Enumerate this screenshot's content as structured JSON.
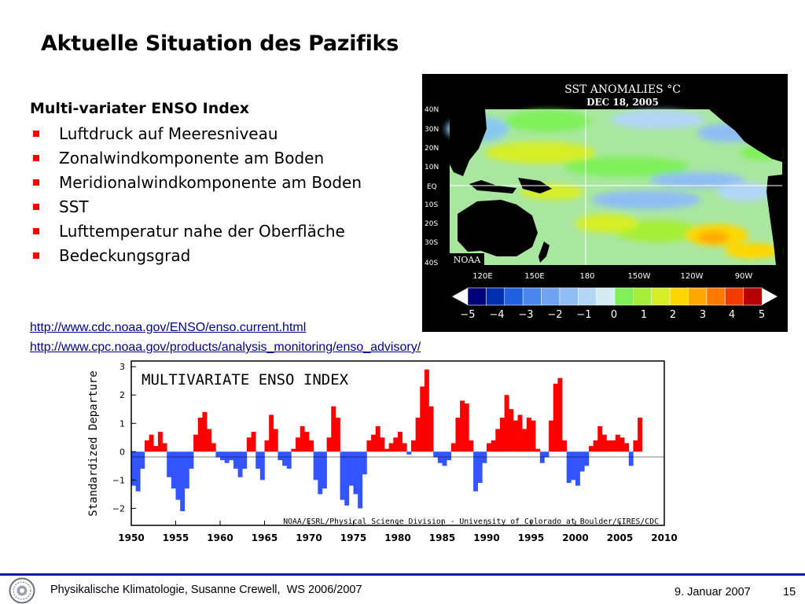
{
  "slide": {
    "title": "Aktuelle Situation des Pazifiks",
    "section_heading": "Multi-variater ENSO Index",
    "bullets": [
      "Luftdruck auf Meeresniveau",
      "Zonalwindkomponente am Boden",
      "Meridionalwindkomponente am Boden",
      "SST",
      "Lufttemperatur nahe der Oberfläche",
      "Bedeckungsgrad"
    ],
    "links": [
      "http://www.cdc.noaa.gov/ENSO/enso.current.html",
      "http://www.cpc.noaa.gov/products/analysis_monitoring/enso_advisory/"
    ],
    "colors": {
      "bullet": "#ff0000",
      "link": "#000099",
      "footer_rule": "#0b1f9e"
    }
  },
  "sst_map": {
    "title": "SST ANOMALIES °C",
    "date": "DEC 18, 2005",
    "credit": "NOAA",
    "lat_labels": [
      "40N",
      "30N",
      "20N",
      "10N",
      "EQ",
      "10S",
      "20S",
      "30S",
      "40S"
    ],
    "lon_labels": [
      "120E",
      "150E",
      "180",
      "150W",
      "120W",
      "90W"
    ],
    "colorbar_ticks": [
      "−5",
      "−4",
      "−3",
      "−2",
      "−1",
      "0",
      "1",
      "2",
      "3",
      "4",
      "5"
    ],
    "colorbar_colors": [
      "#00007a",
      "#0030b0",
      "#2060e0",
      "#4a86ee",
      "#6fa4f2",
      "#90bdf4",
      "#b3d5f6",
      "#d4ecf4",
      "#7ff05a",
      "#a6ee38",
      "#d6ee28",
      "#ffd700",
      "#ffa800",
      "#ff7a00",
      "#f03c00",
      "#b40000"
    ],
    "map_colors": {
      "background": "#000000",
      "ocean_base": "#a9e7a0",
      "land": "#000000",
      "labels": "#ffffff"
    }
  },
  "chart_data": {
    "type": "area",
    "title": "MULTIVARIATE ENSO INDEX",
    "ylabel": "Standardized Departure",
    "xlabel": "",
    "credit": "NOAA/ESRL/Physical Science Division - University of Colorado at Boulder/CIRES/CDC",
    "xlim": [
      1950,
      2010
    ],
    "ylim": [
      -2.6,
      3.2
    ],
    "x_ticks": [
      1950,
      1955,
      1960,
      1965,
      1970,
      1975,
      1980,
      1985,
      1990,
      1995,
      2000,
      2005,
      2010
    ],
    "y_ticks": [
      -2,
      -1,
      0,
      1,
      2,
      3
    ],
    "y_tick_labels": [
      "−2",
      "−1",
      "0",
      "1",
      "2",
      "3"
    ],
    "colors": {
      "positive": "#ff0000",
      "negative": "#3355ff"
    },
    "x": [
      1950.0,
      1950.5,
      1951.0,
      1951.5,
      1952.0,
      1952.5,
      1953.0,
      1953.5,
      1954.0,
      1954.5,
      1955.0,
      1955.5,
      1956.0,
      1956.5,
      1957.0,
      1957.5,
      1958.0,
      1958.5,
      1959.0,
      1959.5,
      1960.0,
      1960.5,
      1961.0,
      1961.5,
      1962.0,
      1962.5,
      1963.0,
      1963.5,
      1964.0,
      1964.5,
      1965.0,
      1965.5,
      1966.0,
      1966.5,
      1967.0,
      1967.5,
      1968.0,
      1968.5,
      1969.0,
      1969.5,
      1970.0,
      1970.5,
      1971.0,
      1971.5,
      1972.0,
      1972.5,
      1973.0,
      1973.5,
      1974.0,
      1974.5,
      1975.0,
      1975.5,
      1976.0,
      1976.5,
      1977.0,
      1977.5,
      1978.0,
      1978.5,
      1979.0,
      1979.5,
      1980.0,
      1980.5,
      1981.0,
      1981.5,
      1982.0,
      1982.5,
      1983.0,
      1983.5,
      1984.0,
      1984.5,
      1985.0,
      1985.5,
      1986.0,
      1986.5,
      1987.0,
      1987.5,
      1988.0,
      1988.5,
      1989.0,
      1989.5,
      1990.0,
      1990.5,
      1991.0,
      1991.5,
      1992.0,
      1992.5,
      1993.0,
      1993.5,
      1994.0,
      1994.5,
      1995.0,
      1995.5,
      1996.0,
      1996.5,
      1997.0,
      1997.5,
      1998.0,
      1998.5,
      1999.0,
      1999.5,
      2000.0,
      2000.5,
      2001.0,
      2001.5,
      2002.0,
      2002.5,
      2003.0,
      2003.5,
      2004.0,
      2004.5,
      2005.0,
      2005.5,
      2006.0,
      2006.5,
      2007.0
    ],
    "values": [
      -1.2,
      -1.4,
      -0.6,
      0.4,
      0.6,
      0.2,
      0.7,
      0.3,
      -0.9,
      -1.3,
      -1.7,
      -2.1,
      -1.3,
      -0.6,
      0.6,
      1.2,
      1.4,
      0.8,
      0.3,
      -0.2,
      -0.3,
      -0.4,
      -0.3,
      -0.6,
      -0.9,
      -0.6,
      0.5,
      0.7,
      -0.6,
      -1.0,
      0.4,
      1.3,
      0.8,
      -0.3,
      -0.5,
      -0.6,
      0.1,
      0.5,
      0.9,
      0.7,
      0.4,
      -1.0,
      -1.5,
      -1.3,
      0.5,
      1.6,
      1.2,
      -1.7,
      -1.9,
      -1.2,
      -1.5,
      -2.0,
      -0.8,
      0.4,
      0.6,
      0.9,
      0.5,
      0.1,
      0.3,
      0.5,
      0.7,
      0.3,
      -0.1,
      0.4,
      1.2,
      2.3,
      2.9,
      1.6,
      -0.2,
      -0.4,
      -0.5,
      -0.3,
      0.3,
      1.2,
      1.8,
      1.7,
      0.4,
      -1.4,
      -1.1,
      -0.4,
      0.3,
      0.4,
      0.8,
      1.2,
      2.0,
      1.5,
      1.1,
      1.3,
      0.8,
      1.2,
      1.1,
      0.1,
      -0.4,
      -0.2,
      1.1,
      2.4,
      2.6,
      0.4,
      -1.1,
      -1.0,
      -1.2,
      -0.7,
      -0.5,
      0.2,
      0.4,
      0.9,
      0.6,
      0.4,
      0.4,
      0.6,
      0.5,
      0.3,
      -0.5,
      0.4,
      1.2
    ]
  },
  "footer": {
    "text": "Physikalische Klimatologie, Susanne Crewell,  WS 2006/2007",
    "date": "9. Januar 2007",
    "page": "15"
  }
}
